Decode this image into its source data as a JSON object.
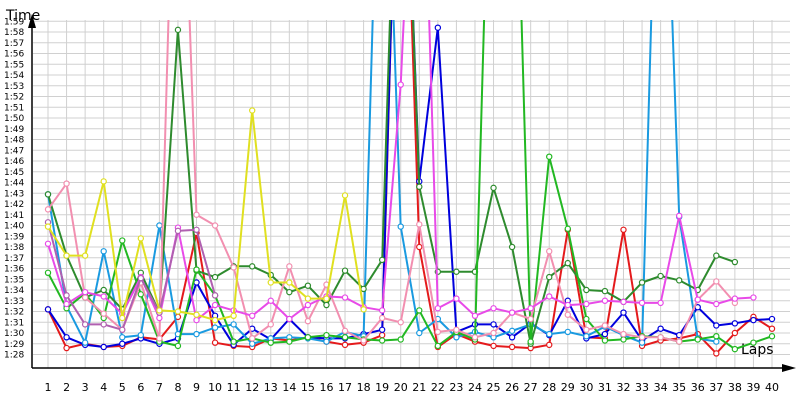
{
  "chart_data": {
    "type": "line",
    "title": "",
    "xlabel": "Laps",
    "ylabel": "Time",
    "grid": true,
    "legend": "none",
    "x": [
      1,
      2,
      3,
      4,
      5,
      6,
      7,
      8,
      9,
      10,
      11,
      12,
      13,
      14,
      15,
      16,
      17,
      18,
      19,
      20,
      21,
      22,
      23,
      24,
      25,
      26,
      27,
      28,
      29,
      30,
      31,
      32,
      33,
      34,
      35,
      36,
      37,
      38,
      39,
      40
    ],
    "xlim": [
      1,
      40
    ],
    "ylim_seconds": [
      87.5,
      121
    ],
    "y_ticks": [
      "1:28",
      "1:29",
      "1:30",
      "1:31",
      "1:32",
      "1:33",
      "1:34",
      "1:35",
      "1:36",
      "1:37",
      "1:38",
      "1:39",
      "1:40",
      "1:41",
      "1:42",
      "1:43",
      "1:44",
      "1:45",
      "1:46",
      "1:47",
      "1:48",
      "1:49",
      "1:50",
      "1:51",
      "1:52",
      "1:53",
      "1:54",
      "1:55",
      "1:56",
      "1:57",
      "1:58",
      "1:59"
    ],
    "y_ticks_seconds": [
      88,
      89,
      90,
      91,
      92,
      93,
      94,
      95,
      96,
      97,
      98,
      99,
      100,
      101,
      102,
      103,
      104,
      105,
      106,
      107,
      108,
      109,
      110,
      111,
      112,
      113,
      114,
      115,
      116,
      117,
      118,
      119
    ],
    "series": [
      {
        "color": "#e41a1c",
        "values": [
          92.2,
          88.6,
          89.0,
          88.7,
          88.8,
          89.6,
          89.4,
          91.5,
          99.3,
          89.1,
          88.8,
          88.7,
          89.5,
          89.3,
          89.6,
          89.2,
          88.9,
          89.1,
          89.8,
          150,
          98.0,
          88.7,
          89.9,
          89.2,
          88.8,
          88.7,
          88.6,
          88.9,
          99.6,
          89.6,
          89.5,
          99.6,
          88.8,
          89.3,
          89.5,
          89.9,
          88.1,
          90.0,
          91.5,
          90.4
        ]
      },
      {
        "color": "#0000dd",
        "values": [
          92.2,
          89.6,
          88.9,
          88.7,
          89.0,
          89.5,
          89.0,
          89.5,
          94.7,
          91.6,
          88.9,
          90.4,
          89.4,
          91.3,
          89.6,
          89.5,
          89.5,
          89.9,
          90.3,
          150,
          104.1,
          118.4,
          90.1,
          90.8,
          90.8,
          89.6,
          90.9,
          89.8,
          93.0,
          89.5,
          89.9,
          91.9,
          89.3,
          90.4,
          89.8,
          92.4,
          90.7,
          90.9,
          91.2,
          91.3
        ]
      },
      {
        "color": "#1a9ae0",
        "values": [
          102.9,
          92.5,
          89.1,
          97.6,
          89.6,
          89.8,
          100.0,
          89.9,
          89.9,
          90.5,
          90.8,
          89.0,
          89.5,
          89.6,
          89.5,
          89.2,
          90.1,
          89.7,
          150,
          99.9,
          90.0,
          91.3,
          89.6,
          90.1,
          89.6,
          90.2,
          90.8,
          89.9,
          90.1,
          89.7,
          90.6,
          89.8,
          89.1,
          150,
          100.8,
          89.5,
          89.2,
          null,
          null,
          null
        ]
      },
      {
        "color": "#2e8b2e",
        "values": [
          102.9,
          97.2,
          93.3,
          94.0,
          92.2,
          95.6,
          91.9,
          118.2,
          95.8,
          95.2,
          96.2,
          96.2,
          95.4,
          93.8,
          94.4,
          92.6,
          95.8,
          94.1,
          96.8,
          150,
          103.6,
          95.7,
          95.7,
          95.7,
          103.5,
          98.0,
          89.0,
          95.2,
          96.5,
          94.0,
          93.9,
          92.9,
          94.7,
          95.3,
          94.9,
          94.0,
          97.2,
          96.6,
          null,
          null
        ]
      },
      {
        "color": "#22b822",
        "values": [
          95.6,
          92.3,
          93.7,
          91.4,
          98.6,
          93.6,
          89.2,
          88.8,
          95.9,
          93.5,
          89.2,
          89.5,
          89.1,
          89.2,
          89.6,
          89.8,
          89.6,
          89.4,
          89.3,
          89.4,
          92.1,
          88.8,
          90.1,
          89.4,
          150,
          150,
          89.2,
          106.4,
          99.7,
          91.3,
          89.3,
          89.4,
          89.7,
          89.6,
          89.2,
          89.4,
          89.7,
          88.5,
          89.1,
          89.7
        ]
      },
      {
        "color": "#f28fb0",
        "values": [
          101.5,
          103.9,
          93.3,
          91.8,
          90.3,
          94.7,
          89.5,
          150,
          101.0,
          100.0,
          96.1,
          89.5,
          90.8,
          96.2,
          91.1,
          94.5,
          90.2,
          89.3,
          91.4,
          91.0,
          100.1,
          90.1,
          90.3,
          89.6,
          90.0,
          91.9,
          91.3,
          97.6,
          91.7,
          90.3,
          90.7,
          89.9,
          89.6,
          89.6,
          89.2,
          93.1,
          94.8,
          92.8,
          null,
          null
        ]
      },
      {
        "color": "#e84ae8",
        "values": [
          98.3,
          92.7,
          93.8,
          93.4,
          91.8,
          95.2,
          91.4,
          99.8,
          91.2,
          92.6,
          92.1,
          91.6,
          93.0,
          91.3,
          92.6,
          93.4,
          93.3,
          92.4,
          92.1,
          113.1,
          150,
          92.3,
          93.2,
          91.6,
          92.3,
          91.9,
          92.3,
          93.4,
          92.6,
          92.7,
          93.0,
          92.9,
          92.8,
          92.8,
          100.9,
          93.1,
          92.7,
          93.2,
          93.3,
          null
        ]
      },
      {
        "color": "#b060b0",
        "values": [
          100.3,
          93.5,
          90.8,
          90.8,
          90.3,
          95.1,
          91.9,
          99.5,
          99.6,
          93.5,
          null,
          null,
          null,
          null,
          null,
          null,
          null,
          null,
          null,
          null,
          null,
          null,
          null,
          null,
          null,
          null,
          null,
          null,
          null,
          null,
          null,
          null,
          null,
          null,
          null,
          null,
          null,
          null,
          null,
          null
        ]
      },
      {
        "color": "#e0e020",
        "values": [
          99.9,
          97.2,
          97.2,
          104.1,
          91.4,
          98.8,
          92.1,
          92.0,
          91.7,
          91.2,
          91.6,
          110.7,
          94.7,
          94.7,
          93.2,
          93.2,
          102.8,
          92.2,
          null,
          null,
          null,
          null,
          null,
          null,
          null,
          null,
          null,
          null,
          null,
          null,
          null,
          null,
          null,
          null,
          null,
          null,
          null,
          null,
          null,
          null
        ]
      }
    ]
  }
}
